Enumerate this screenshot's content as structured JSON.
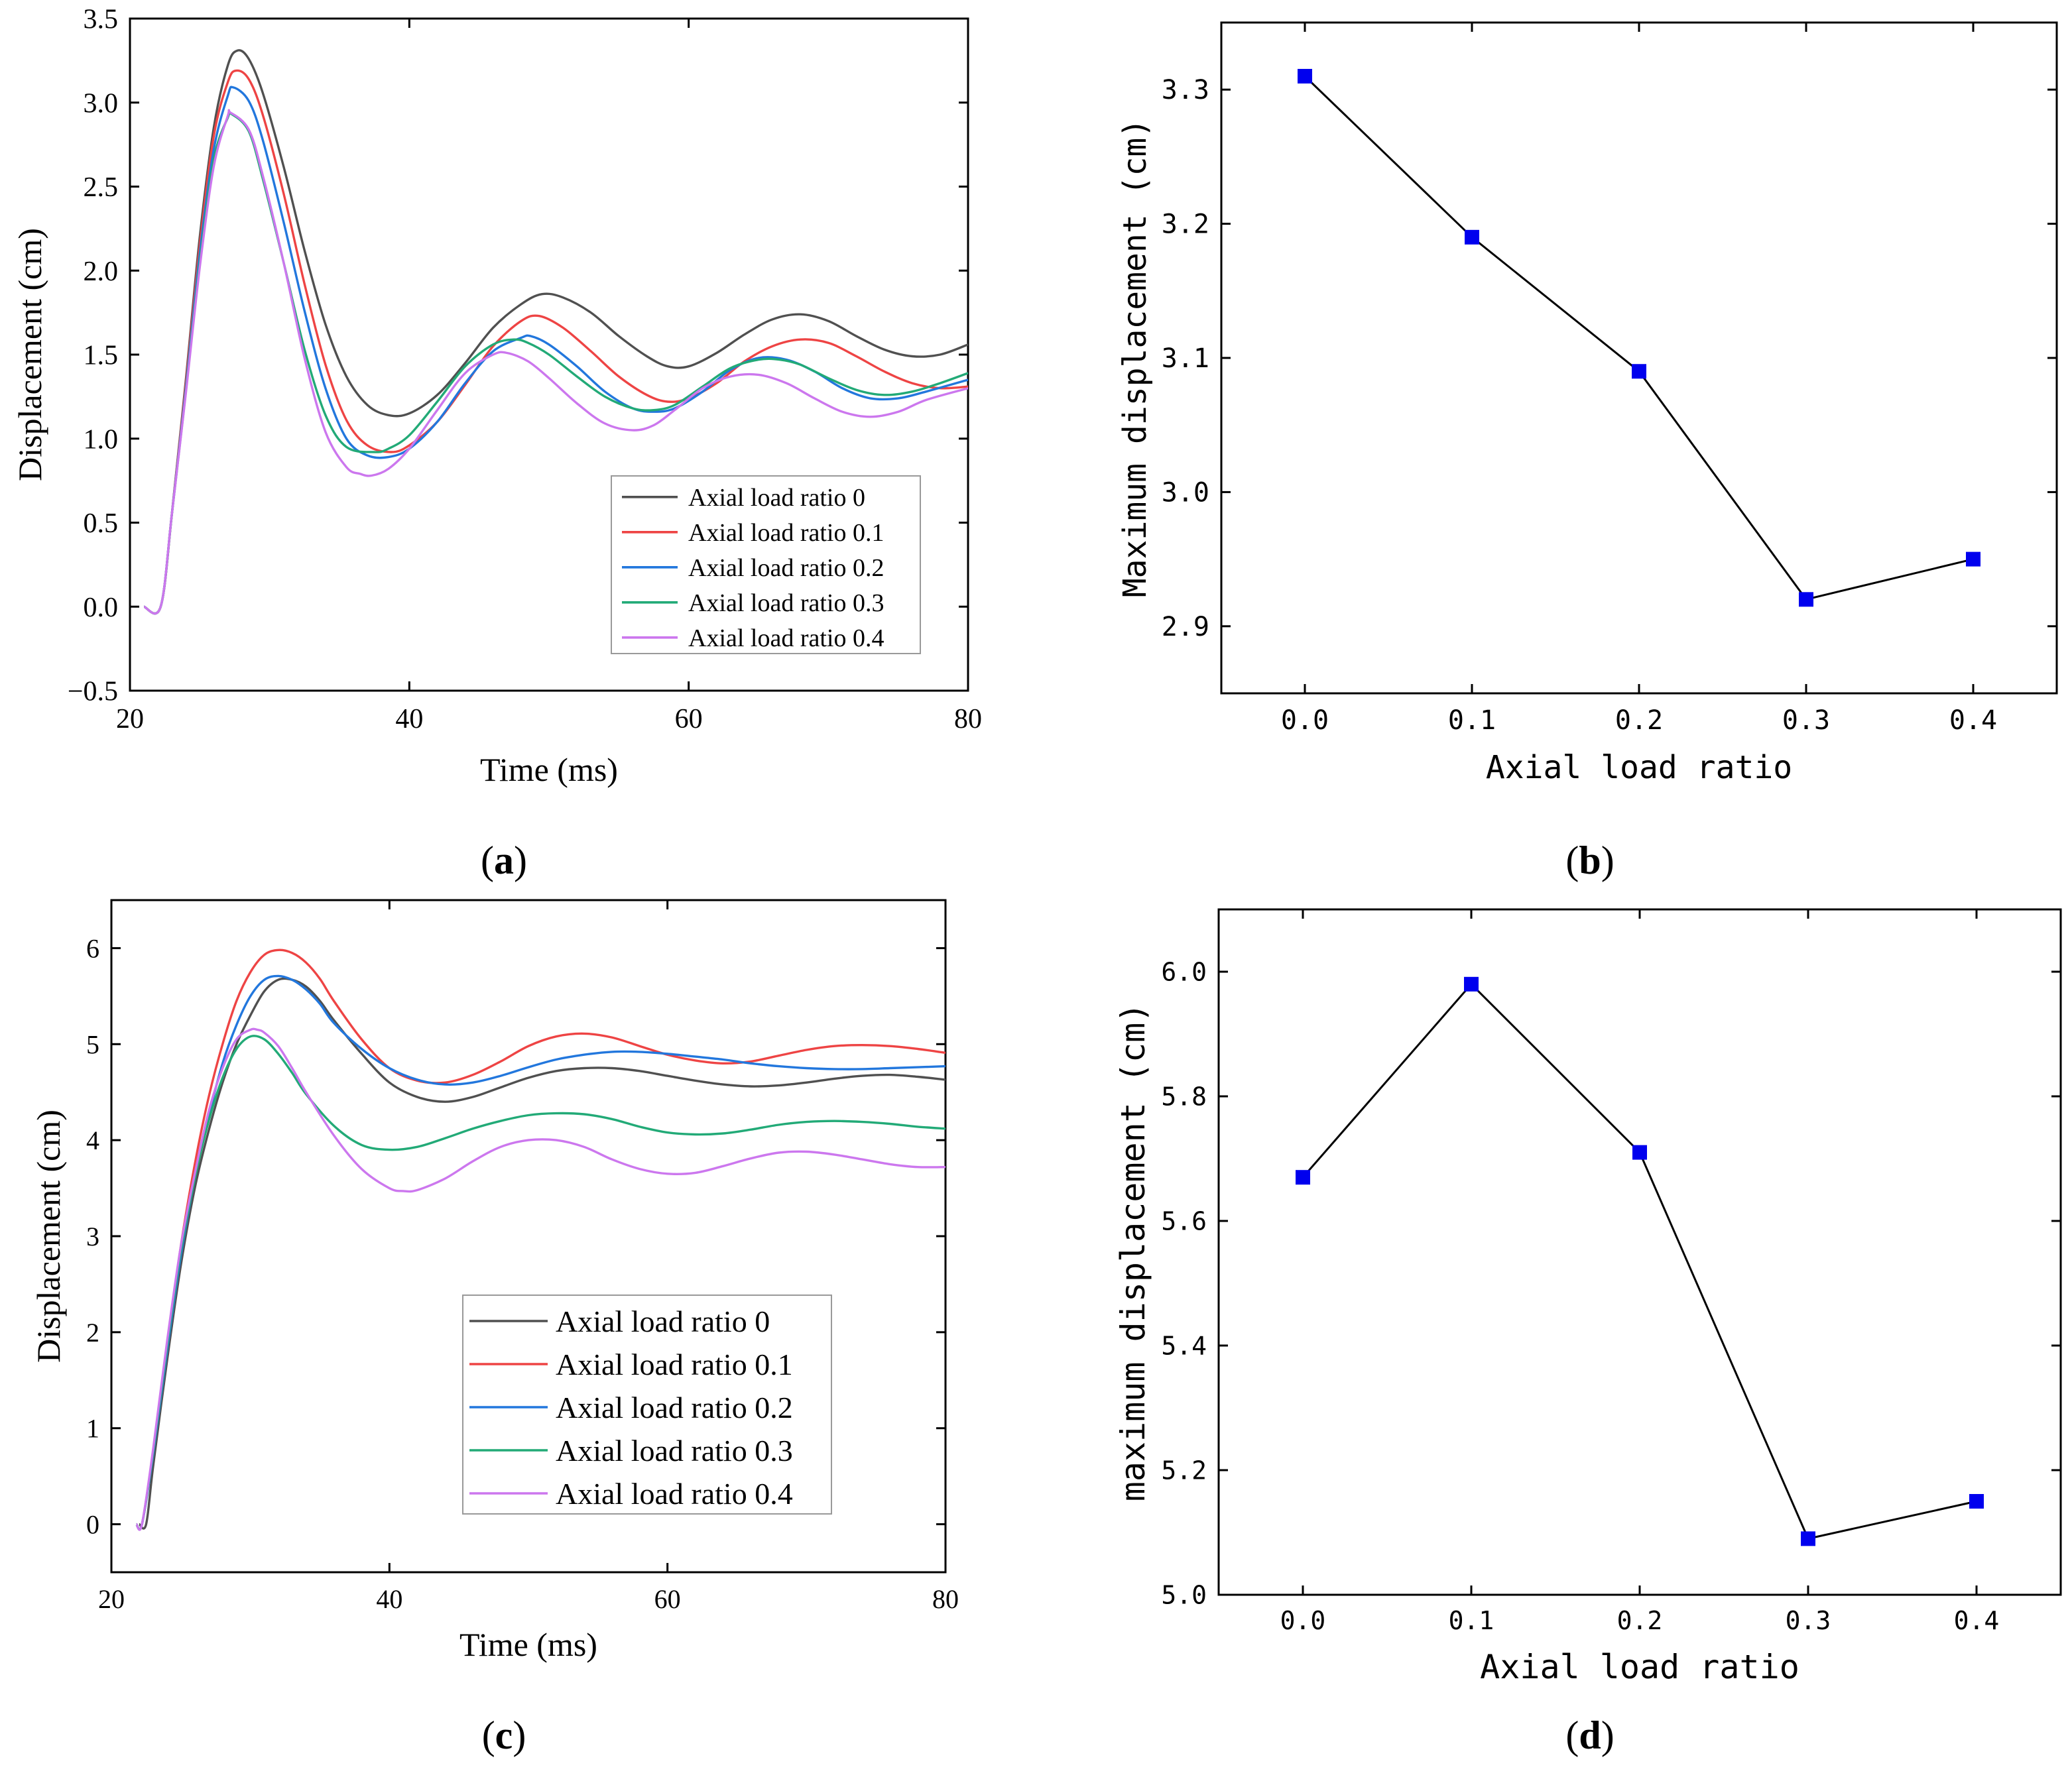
{
  "chart_data": [
    {
      "id": "a",
      "type": "line",
      "caption": "(a)",
      "caption_letter": "a",
      "xlabel": "Time (ms)",
      "ylabel": "Displacement (cm)",
      "xlim": [
        20,
        80
      ],
      "ylim": [
        -0.5,
        3.5
      ],
      "xticks": [
        20,
        40,
        60,
        80
      ],
      "yticks": [
        -0.5,
        0.0,
        0.5,
        1.0,
        1.5,
        2.0,
        2.5,
        3.0,
        3.5
      ],
      "ytick_labels": [
        "−0.5",
        "0.0",
        "0.5",
        "1.0",
        "1.5",
        "2.0",
        "2.5",
        "3.0",
        "3.5"
      ],
      "legend_position": "lower-right",
      "series": [
        {
          "name": "Axial load ratio  0",
          "color": "#505050",
          "x": [
            21,
            22.2,
            23,
            24,
            25,
            26,
            27,
            27.7,
            28.5,
            29.5,
            31,
            32.5,
            34,
            35.5,
            37,
            38.5,
            40,
            42,
            44,
            46,
            48,
            49.5,
            51,
            53,
            55,
            57,
            58.5,
            60,
            62,
            64,
            66,
            68,
            70,
            72,
            74,
            76,
            78,
            80
          ],
          "y": [
            0,
            0,
            0.55,
            1.35,
            2.2,
            2.85,
            3.22,
            3.31,
            3.26,
            3.06,
            2.62,
            2.12,
            1.68,
            1.37,
            1.2,
            1.14,
            1.15,
            1.26,
            1.45,
            1.66,
            1.8,
            1.86,
            1.84,
            1.75,
            1.61,
            1.49,
            1.43,
            1.43,
            1.51,
            1.62,
            1.71,
            1.74,
            1.7,
            1.61,
            1.53,
            1.49,
            1.5,
            1.56
          ]
        },
        {
          "name": "Axial load ratio  0.1",
          "color": "#ee4444",
          "x": [
            21,
            22.2,
            23,
            24,
            25,
            26,
            27,
            27.6,
            28.5,
            29.5,
            31,
            32.5,
            34,
            35.5,
            37,
            38.7,
            40,
            42,
            44,
            46,
            48,
            49.3,
            51,
            53,
            55,
            57,
            58.5,
            60,
            62,
            64,
            66,
            68,
            70,
            72,
            74,
            76,
            78,
            80
          ],
          "y": [
            0,
            0,
            0.55,
            1.33,
            2.15,
            2.8,
            3.12,
            3.19,
            3.14,
            2.93,
            2.46,
            1.92,
            1.44,
            1.11,
            0.96,
            0.92,
            0.96,
            1.1,
            1.32,
            1.55,
            1.7,
            1.73,
            1.66,
            1.52,
            1.37,
            1.26,
            1.22,
            1.24,
            1.33,
            1.46,
            1.55,
            1.59,
            1.57,
            1.49,
            1.4,
            1.33,
            1.3,
            1.31
          ]
        },
        {
          "name": "Axial load ratio  0.2",
          "color": "#2277dd",
          "x": [
            21,
            22.2,
            23,
            24,
            25,
            26,
            27,
            27.4,
            28.5,
            29.5,
            31,
            32.5,
            34,
            35.5,
            37,
            38.5,
            40,
            42,
            44,
            46,
            48,
            48.7,
            50,
            52,
            54,
            56,
            57.5,
            59,
            61,
            63,
            65,
            67,
            69,
            71,
            73,
            75,
            77,
            80
          ],
          "y": [
            0,
            0,
            0.55,
            1.3,
            2.1,
            2.72,
            3.04,
            3.09,
            3.01,
            2.78,
            2.29,
            1.76,
            1.3,
            1.0,
            0.9,
            0.89,
            0.94,
            1.1,
            1.33,
            1.52,
            1.6,
            1.61,
            1.56,
            1.43,
            1.28,
            1.18,
            1.16,
            1.18,
            1.28,
            1.41,
            1.48,
            1.47,
            1.4,
            1.3,
            1.24,
            1.24,
            1.28,
            1.35
          ]
        },
        {
          "name": "Axial load ratio  0.3",
          "color": "#22aa77",
          "x": [
            21,
            22.2,
            23,
            24,
            25,
            26,
            27,
            27.3,
            28.5,
            29.5,
            31,
            32.5,
            34,
            35.5,
            37.5,
            38.5,
            40,
            42,
            44,
            46,
            47.5,
            48.5,
            50,
            52,
            54,
            56,
            57.5,
            59,
            61,
            63,
            65,
            66.5,
            68,
            70,
            72,
            74,
            76,
            78,
            80
          ],
          "y": [
            0,
            0,
            0.55,
            1.28,
            2.05,
            2.66,
            2.91,
            2.93,
            2.83,
            2.55,
            2.05,
            1.53,
            1.14,
            0.95,
            0.92,
            0.94,
            1.02,
            1.22,
            1.43,
            1.56,
            1.59,
            1.57,
            1.5,
            1.37,
            1.25,
            1.18,
            1.17,
            1.2,
            1.31,
            1.42,
            1.47,
            1.47,
            1.44,
            1.36,
            1.29,
            1.26,
            1.28,
            1.33,
            1.39
          ]
        },
        {
          "name": "Axial load ratio  0.4",
          "color": "#cc77ee",
          "x": [
            21,
            22.2,
            23,
            24,
            25,
            26,
            27,
            27.2,
            28.5,
            29.5,
            31,
            32.5,
            34,
            35.5,
            36.5,
            37.3,
            38.5,
            40,
            42,
            44,
            46,
            47,
            48.5,
            50,
            52,
            54,
            56,
            57.5,
            59,
            61,
            63,
            65,
            67,
            69,
            71,
            73,
            75,
            77,
            80
          ],
          "y": [
            0,
            0,
            0.55,
            1.27,
            2.02,
            2.62,
            2.92,
            2.94,
            2.84,
            2.57,
            2.05,
            1.48,
            1.04,
            0.83,
            0.79,
            0.78,
            0.82,
            0.94,
            1.17,
            1.39,
            1.5,
            1.51,
            1.46,
            1.36,
            1.21,
            1.09,
            1.05,
            1.08,
            1.17,
            1.3,
            1.37,
            1.38,
            1.33,
            1.24,
            1.16,
            1.13,
            1.16,
            1.23,
            1.3
          ]
        }
      ]
    },
    {
      "id": "b",
      "type": "line",
      "caption": "(b)",
      "caption_letter": "b",
      "xlabel": "Axial load ratio",
      "ylabel": "Maximum displacement (cm)",
      "xlim": [
        -0.05,
        0.45
      ],
      "ylim": [
        2.85,
        3.35
      ],
      "xticks": [
        0.0,
        0.1,
        0.2,
        0.3,
        0.4
      ],
      "xtick_labels": [
        "0.0",
        "0.1",
        "0.2",
        "0.3",
        "0.4"
      ],
      "yticks": [
        2.9,
        3.0,
        3.1,
        3.2,
        3.3
      ],
      "ytick_labels": [
        "2.9",
        "3.0",
        "3.1",
        "3.2",
        "3.3"
      ],
      "marker": "square",
      "marker_color": "#0000ee",
      "line_color": "#000000",
      "x": [
        0.0,
        0.1,
        0.2,
        0.3,
        0.4
      ],
      "y": [
        3.31,
        3.19,
        3.09,
        2.92,
        2.95
      ]
    },
    {
      "id": "c",
      "type": "line",
      "caption": "(c)",
      "caption_letter": "c",
      "xlabel": "Time (ms)",
      "ylabel": "Displacement (cm)",
      "xlim": [
        20,
        80
      ],
      "ylim": [
        -0.5,
        6.5
      ],
      "xticks": [
        20,
        40,
        60,
        80
      ],
      "yticks": [
        0,
        1,
        2,
        3,
        4,
        5,
        6
      ],
      "ytick_labels": [
        "0",
        "1",
        "2",
        "3",
        "4",
        "5",
        "6"
      ],
      "legend_position": "lower-center",
      "series": [
        {
          "name": "Axial load ratio 0",
          "color": "#505050",
          "x": [
            22,
            22.5,
            23,
            24,
            25,
            26,
            27,
            28,
            29,
            30,
            31,
            32,
            33,
            34,
            35,
            36,
            38,
            40,
            42,
            44,
            46,
            48,
            50,
            52,
            54,
            56,
            58,
            60,
            62,
            64,
            66,
            68,
            70,
            72,
            74,
            76,
            78,
            80
          ],
          "y": [
            0,
            0,
            0.6,
            1.7,
            2.7,
            3.5,
            4.1,
            4.6,
            5.0,
            5.3,
            5.55,
            5.67,
            5.67,
            5.6,
            5.45,
            5.25,
            4.9,
            4.6,
            4.45,
            4.4,
            4.45,
            4.55,
            4.65,
            4.72,
            4.75,
            4.75,
            4.72,
            4.67,
            4.62,
            4.58,
            4.56,
            4.57,
            4.6,
            4.64,
            4.67,
            4.68,
            4.66,
            4.63
          ]
        },
        {
          "name": "Axial load ratio 0.1",
          "color": "#ee4444",
          "x": [
            21.8,
            22.2,
            23,
            24,
            25,
            26,
            27,
            28,
            29,
            30,
            31,
            32,
            33,
            34,
            35,
            36,
            38,
            40,
            42,
            44,
            46,
            48,
            50,
            52,
            54,
            56,
            58,
            60,
            62,
            64,
            66,
            68,
            70,
            72,
            74,
            76,
            78,
            80
          ],
          "y": [
            0,
            0,
            0.75,
            1.85,
            2.9,
            3.75,
            4.45,
            5.0,
            5.45,
            5.75,
            5.93,
            5.98,
            5.95,
            5.85,
            5.68,
            5.45,
            5.05,
            4.75,
            4.62,
            4.6,
            4.68,
            4.82,
            4.98,
            5.08,
            5.11,
            5.07,
            4.98,
            4.89,
            4.83,
            4.8,
            4.82,
            4.88,
            4.94,
            4.98,
            4.99,
            4.98,
            4.95,
            4.91
          ]
        },
        {
          "name": "Axial load ratio 0.2",
          "color": "#2277dd",
          "x": [
            21.8,
            22.2,
            23,
            24,
            25,
            26,
            27,
            28,
            29,
            30,
            31,
            32,
            33,
            34,
            35,
            36,
            38,
            40,
            42,
            44,
            46,
            48,
            50,
            52,
            54,
            56,
            58,
            60,
            62,
            64,
            66,
            68,
            70,
            72,
            74,
            76,
            78,
            80
          ],
          "y": [
            0,
            0,
            0.72,
            1.8,
            2.8,
            3.6,
            4.25,
            4.8,
            5.2,
            5.5,
            5.67,
            5.71,
            5.67,
            5.57,
            5.42,
            5.22,
            4.95,
            4.75,
            4.63,
            4.58,
            4.6,
            4.67,
            4.76,
            4.84,
            4.89,
            4.92,
            4.92,
            4.9,
            4.87,
            4.84,
            4.8,
            4.77,
            4.75,
            4.74,
            4.74,
            4.75,
            4.76,
            4.77
          ]
        },
        {
          "name": "Axial load ratio 0.3",
          "color": "#22aa77",
          "x": [
            21.8,
            22.2,
            23,
            24,
            25,
            26,
            27,
            28,
            29,
            30,
            31,
            32,
            33,
            34,
            36,
            38,
            40,
            42,
            44,
            46,
            48,
            50,
            52,
            54,
            56,
            58,
            60,
            62,
            64,
            66,
            68,
            70,
            72,
            74,
            76,
            78,
            80
          ],
          "y": [
            0,
            0,
            0.75,
            1.85,
            2.85,
            3.6,
            4.2,
            4.65,
            4.95,
            5.08,
            5.05,
            4.9,
            4.7,
            4.48,
            4.15,
            3.95,
            3.9,
            3.93,
            4.02,
            4.12,
            4.2,
            4.26,
            4.28,
            4.27,
            4.22,
            4.14,
            4.08,
            4.06,
            4.07,
            4.11,
            4.16,
            4.19,
            4.2,
            4.19,
            4.17,
            4.14,
            4.12
          ]
        },
        {
          "name": "Axial load ratio 0.4",
          "color": "#cc77ee",
          "x": [
            21.8,
            22.2,
            23,
            24,
            25,
            26,
            27,
            28,
            29,
            30,
            30.5,
            31,
            32,
            33,
            34,
            36,
            38,
            40,
            41,
            42,
            44,
            46,
            48,
            50,
            52,
            54,
            56,
            58,
            60,
            62,
            64,
            66,
            68,
            70,
            72,
            74,
            76,
            78,
            80
          ],
          "y": [
            0,
            0,
            0.78,
            1.9,
            2.9,
            3.65,
            4.3,
            4.75,
            5.05,
            5.15,
            5.15,
            5.12,
            4.98,
            4.75,
            4.5,
            4.05,
            3.7,
            3.5,
            3.47,
            3.48,
            3.6,
            3.78,
            3.93,
            4.0,
            4.0,
            3.93,
            3.8,
            3.7,
            3.65,
            3.66,
            3.73,
            3.81,
            3.87,
            3.88,
            3.85,
            3.8,
            3.75,
            3.72,
            3.72
          ]
        }
      ]
    },
    {
      "id": "d",
      "type": "line",
      "caption": "(d)",
      "caption_letter": "d",
      "xlabel": "Axial load ratio",
      "ylabel": "maximum displacement (cm)",
      "xlim": [
        -0.05,
        0.45
      ],
      "ylim": [
        5.0,
        6.1
      ],
      "xticks": [
        0.0,
        0.1,
        0.2,
        0.3,
        0.4
      ],
      "xtick_labels": [
        "0.0",
        "0.1",
        "0.2",
        "0.3",
        "0.4"
      ],
      "yticks": [
        5.0,
        5.2,
        5.4,
        5.6,
        5.8,
        6.0
      ],
      "ytick_labels": [
        "5.0",
        "5.2",
        "5.4",
        "5.6",
        "5.8",
        "6.0"
      ],
      "marker": "square",
      "marker_color": "#0000ee",
      "line_color": "#000000",
      "x": [
        0.0,
        0.1,
        0.2,
        0.3,
        0.4
      ],
      "y": [
        5.67,
        5.98,
        5.71,
        5.09,
        5.15
      ]
    }
  ]
}
